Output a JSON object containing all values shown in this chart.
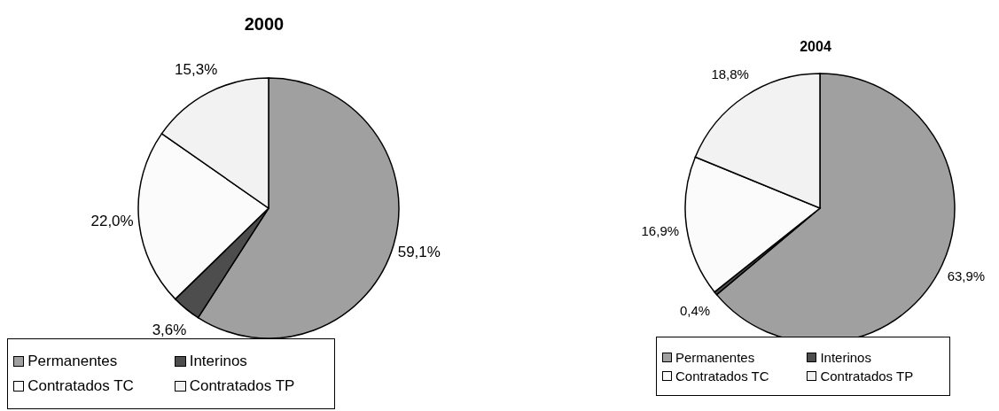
{
  "chart_data": [
    {
      "type": "pie",
      "title": "2000",
      "categories": [
        "Permanentes",
        "Interinos",
        "Contratados TC",
        "Contratados TP"
      ],
      "values": [
        59.1,
        3.6,
        22.0,
        15.3
      ],
      "value_labels": [
        "59,1%",
        "3,6%",
        "22,0%",
        "15,3%"
      ],
      "colors": [
        "#a0a0a0",
        "#4d4d4d",
        "#fbfbfb",
        "#f2f2f2"
      ],
      "legend": "bottom"
    },
    {
      "type": "pie",
      "title": "2004",
      "categories": [
        "Permanentes",
        "Interinos",
        "Contratados TC",
        "Contratados TP"
      ],
      "values": [
        63.9,
        0.4,
        16.9,
        18.8
      ],
      "value_labels": [
        "63,9%",
        "0,4%",
        "16,9%",
        "18,8%"
      ],
      "colors": [
        "#a0a0a0",
        "#4d4d4d",
        "#fbfbfb",
        "#f2f2f2"
      ],
      "legend": "bottom"
    }
  ]
}
